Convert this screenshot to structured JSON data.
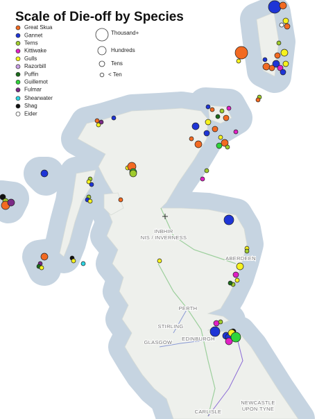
{
  "title": "Scale of Die-off by Species",
  "legend": {
    "species": [
      {
        "name": "Great Skua",
        "color": "#f26a22"
      },
      {
        "name": "Gannet",
        "color": "#1e35d6"
      },
      {
        "name": "Terns",
        "color": "#9fcb2c"
      },
      {
        "name": "Kittiwake",
        "color": "#e020c4"
      },
      {
        "name": "Gulls",
        "color": "#f6f21e"
      },
      {
        "name": "Razorbill",
        "color": "#c9a0e6"
      },
      {
        "name": "Puffin",
        "color": "#1b6b1b"
      },
      {
        "name": "Guillemot",
        "color": "#2fd43a"
      },
      {
        "name": "Fulmar",
        "color": "#7b2a86"
      },
      {
        "name": "Shearwater",
        "color": "#2fd6e4"
      },
      {
        "name": "Shag",
        "color": "#111111"
      },
      {
        "name": "Eider",
        "color": "#ffffff"
      }
    ],
    "sizes": [
      "Thousand+",
      "Hundreds",
      "Tens",
      "< Ten"
    ]
  },
  "places": [
    {
      "lines": [
        "INBHIR",
        "NIS / INVERNESS"
      ]
    },
    {
      "lines": [
        "ABERDEEN"
      ]
    },
    {
      "lines": [
        "PERTH"
      ]
    },
    {
      "lines": [
        "STIRLING"
      ]
    },
    {
      "lines": [
        "GLASGOW"
      ]
    },
    {
      "lines": [
        "EDINBURGH"
      ]
    },
    {
      "lines": [
        "NEWCASTLE",
        "UPON TYNE"
      ]
    },
    {
      "lines": [
        "CARLISLE"
      ]
    }
  ]
}
